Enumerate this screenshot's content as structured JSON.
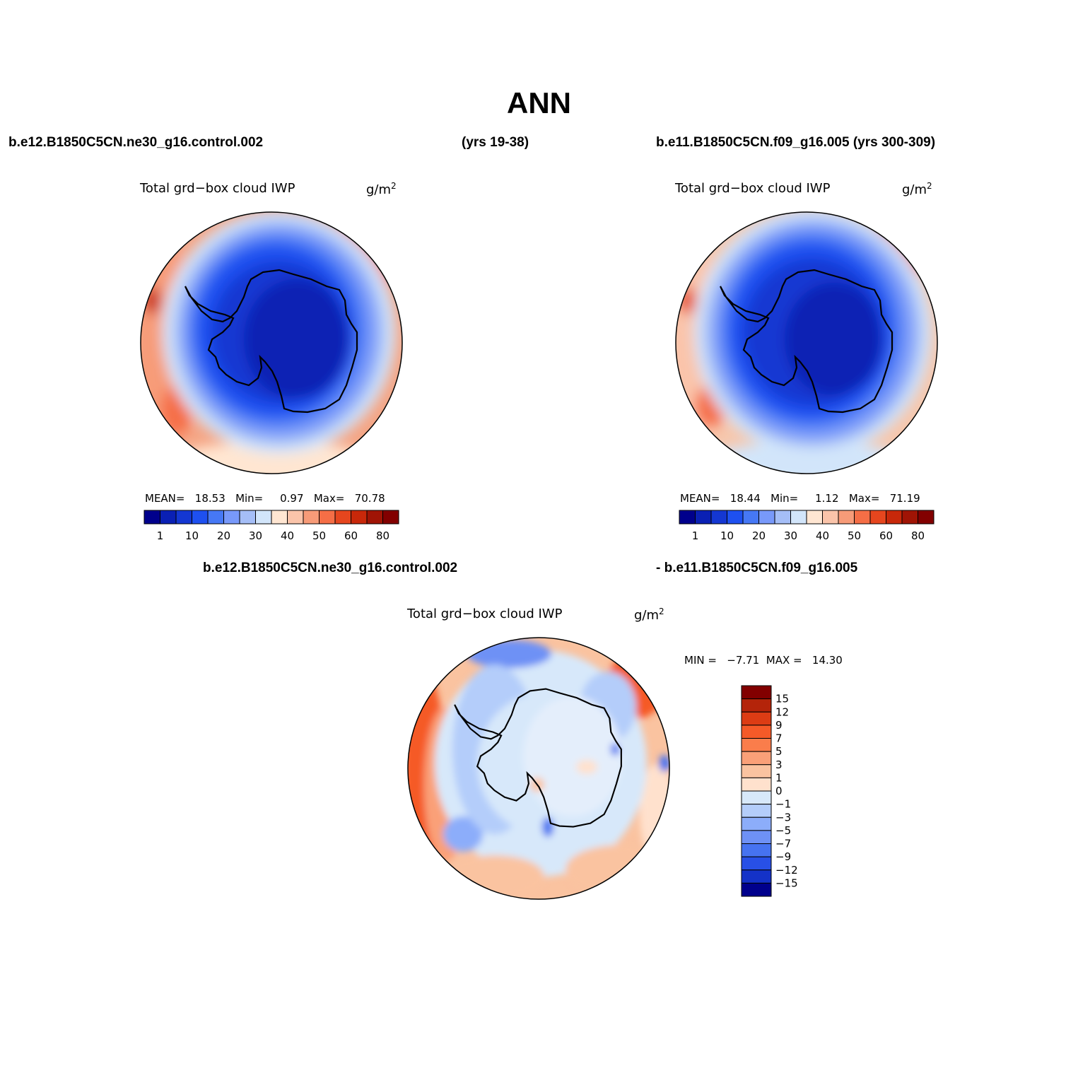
{
  "title": "ANN",
  "header": {
    "case1": "b.e12.B1850C5CN.ne30_g16.control.002",
    "years1": "(yrs 19-38)",
    "case2": "b.e11.B1850C5CN.f09_g16.005 (yrs 300-309)"
  },
  "panels": [
    {
      "variable": "Total grd−box cloud IWP",
      "units": "g/m",
      "units_sup": "2",
      "mean_label": "MEAN=",
      "mean": "18.53",
      "min_label": "Min=",
      "min": "0.97",
      "max_label": "Max=",
      "max": "70.78"
    },
    {
      "variable": "Total grd−box cloud IWP",
      "units": "g/m",
      "units_sup": "2",
      "mean_label": "MEAN=",
      "mean": "18.44",
      "min_label": "Min=",
      "min": "1.12",
      "max_label": "Max=",
      "max": "71.19"
    }
  ],
  "diff": {
    "case_a": "b.e12.B1850C5CN.ne30_g16.control.002",
    "case_b": "- b.e11.B1850C5CN.f09_g16.005",
    "variable": "Total grd−box cloud IWP",
    "units": "g/m",
    "units_sup": "2",
    "min_label": "MIN =",
    "min": "−7.71",
    "max_label": "MAX =",
    "max": "14.30"
  },
  "colorbar_main": {
    "colors": [
      "#00008c",
      "#0a20b4",
      "#1437d2",
      "#1e50f0",
      "#4678f5",
      "#7899fa",
      "#a5bef7",
      "#d2e5fa",
      "#ffe6d2",
      "#fac4aa",
      "#f79b78",
      "#f56e46",
      "#e6461e",
      "#c8280a",
      "#a01405",
      "#820000"
    ],
    "labels": [
      "1",
      "10",
      "20",
      "30",
      "40",
      "50",
      "60",
      "80"
    ]
  },
  "colorbar_diff": {
    "colors": [
      "#820000",
      "#b4240a",
      "#dc3c14",
      "#f55a28",
      "#fa7d4b",
      "#faa078",
      "#fac3a0",
      "#ffe1cd",
      "#d7e8fa",
      "#b4cdfa",
      "#8cadfa",
      "#6e91f5",
      "#4673f0",
      "#2850e6",
      "#1432c8",
      "#00008c"
    ],
    "labels": [
      "15",
      "12",
      "9",
      "7",
      "5",
      "3",
      "1",
      "0",
      "−1",
      "−3",
      "−5",
      "−7",
      "−9",
      "−12",
      "−15"
    ]
  }
}
